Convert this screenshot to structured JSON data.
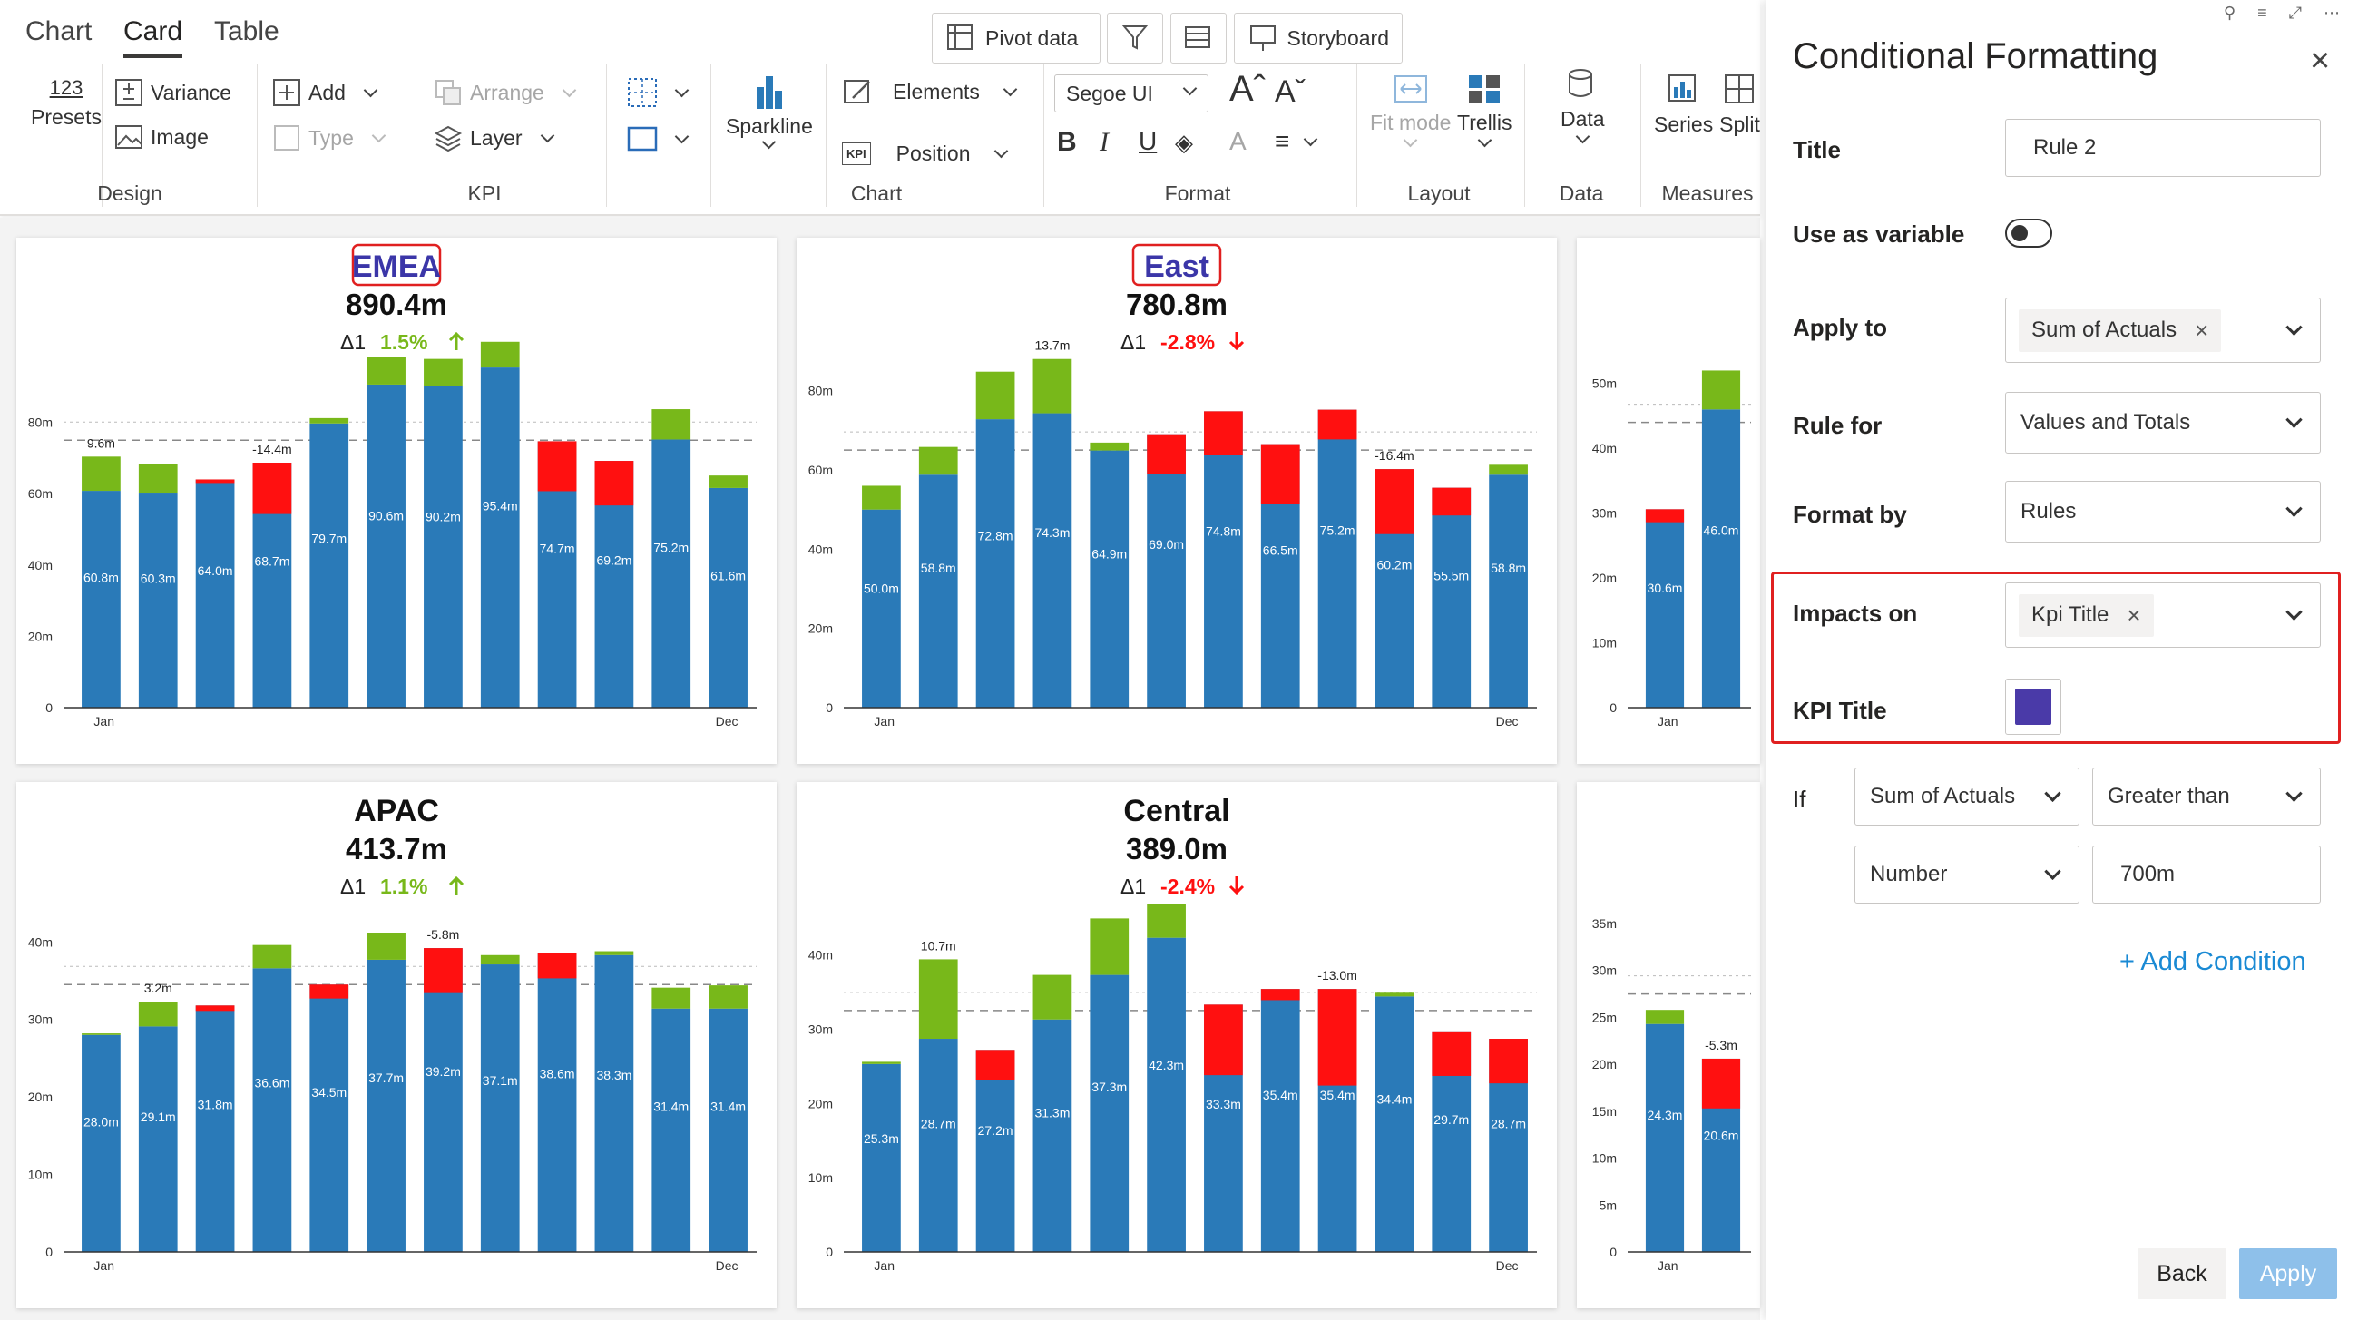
{
  "tabs": [
    "Chart",
    "Card",
    "Table"
  ],
  "toolbar": {
    "pivot_data": "Pivot data",
    "storyboard": "Storyboard",
    "presets_icon_text": "123",
    "presets": "Presets",
    "variance": "Variance",
    "image": "Image",
    "add": "Add",
    "type": "Type",
    "arrange": "Arrange",
    "layer": "Layer",
    "sparkline": "Sparkline",
    "elements": "Elements",
    "position": "Position",
    "kpi_icon_text": "KPI",
    "font": "Segoe UI",
    "fit_mode": "Fit mode",
    "trellis": "Trellis",
    "data": "Data",
    "series": "Series",
    "split": "Split",
    "groups": [
      "Design",
      "KPI",
      "Chart",
      "Format",
      "Layout",
      "Data",
      "Measures"
    ]
  },
  "cards": [
    {
      "title": "EMEA",
      "highlighted": true,
      "value": "890.4m",
      "delta_label": "Δ1",
      "delta": "1.5%",
      "delta_dir": "up",
      "chart_data": {
        "type": "bar",
        "x_start": "Jan",
        "x_end": "Dec",
        "yticks": [
          "0",
          "20m",
          "40m",
          "60m",
          "80m"
        ],
        "ymax": 100,
        "ref": 75,
        "values": [
          60.8,
          60.3,
          64.0,
          68.7,
          79.7,
          90.6,
          90.2,
          95.4,
          74.7,
          69.2,
          75.2,
          61.6
        ],
        "labels": [
          "60.8m",
          "60.3m",
          "64.0m",
          "68.7m",
          "79.7m",
          "90.6m",
          "90.2m",
          "95.4m",
          "74.7m",
          "69.2m",
          "75.2m",
          "61.6m"
        ],
        "delta": [
          9.6,
          8.0,
          -1.0,
          -14.4,
          1.5,
          7.8,
          7.6,
          7.2,
          -14.0,
          -12.5,
          8.5,
          3.5
        ],
        "annotations": [
          {
            "i": 0,
            "text": "9.6m"
          },
          {
            "i": 3,
            "text": "-14.4m"
          }
        ]
      }
    },
    {
      "title": "East",
      "highlighted": true,
      "value": "780.8m",
      "delta_label": "Δ1",
      "delta": "-2.8%",
      "delta_dir": "down",
      "chart_data": {
        "type": "bar",
        "x_start": "Jan",
        "x_end": "Dec",
        "yticks": [
          "0",
          "20m",
          "40m",
          "60m",
          "80m"
        ],
        "ymax": 90,
        "ref": 65,
        "values": [
          50.0,
          58.8,
          72.8,
          74.3,
          64.9,
          69.0,
          74.8,
          66.5,
          75.2,
          60.2,
          55.5,
          58.8
        ],
        "labels": [
          "50.0m",
          "58.8m",
          "72.8m",
          "74.3m",
          "64.9m",
          "69.0m",
          "74.8m",
          "66.5m",
          "75.2m",
          "60.2m",
          "55.5m",
          "58.8m"
        ],
        "delta": [
          6.0,
          7.0,
          12.0,
          13.7,
          2.0,
          -10.0,
          -11.0,
          -15.0,
          -7.5,
          -16.4,
          -7.0,
          2.5
        ],
        "annotations": [
          {
            "i": 3,
            "text": "13.7m"
          },
          {
            "i": 9,
            "text": "-16.4m"
          }
        ]
      }
    },
    {
      "title": "",
      "highlighted": false,
      "value": "",
      "delta_label": "",
      "delta": "",
      "delta_dir": "",
      "chart_data": {
        "type": "bar",
        "x_start": "Jan",
        "x_end": "",
        "yticks": [
          "0",
          "10m",
          "20m",
          "30m",
          "40m",
          "50m"
        ],
        "ymax": 55,
        "ref": 44,
        "values": [
          30.6,
          46.0
        ],
        "labels": [
          "30.6m",
          "46.0m"
        ],
        "delta": [
          -2.0,
          6.0
        ],
        "annotations": []
      }
    },
    {
      "title": "APAC",
      "highlighted": false,
      "value": "413.7m",
      "delta_label": "Δ1",
      "delta": "1.1%",
      "delta_dir": "up",
      "chart_data": {
        "type": "bar",
        "x_start": "Jan",
        "x_end": "Dec",
        "yticks": [
          "0",
          "10m",
          "20m",
          "30m",
          "40m"
        ],
        "ymax": 46,
        "ref": 34.5,
        "values": [
          28.0,
          29.1,
          31.8,
          36.6,
          34.5,
          37.7,
          39.2,
          37.1,
          38.6,
          38.3,
          31.4,
          31.4
        ],
        "labels": [
          "28.0m",
          "29.1m",
          "31.8m",
          "36.6m",
          "34.5m",
          "37.7m",
          "39.2m",
          "37.1m",
          "38.6m",
          "38.3m",
          "31.4m",
          "31.4m"
        ],
        "delta": [
          0.2,
          3.2,
          -0.7,
          3.0,
          -1.8,
          3.5,
          -5.8,
          1.2,
          -3.3,
          0.5,
          2.7,
          3.0
        ],
        "annotations": [
          {
            "i": 1,
            "text": "3.2m"
          },
          {
            "i": 6,
            "text": "-5.8m"
          }
        ]
      }
    },
    {
      "title": "Central",
      "highlighted": false,
      "value": "389.0m",
      "delta_label": "Δ1",
      "delta": "-2.4%",
      "delta_dir": "down",
      "chart_data": {
        "type": "bar",
        "x_start": "Jan",
        "x_end": "Dec",
        "yticks": [
          "0",
          "10m",
          "20m",
          "30m",
          "40m"
        ],
        "ymax": 48,
        "ref": 32.5,
        "values": [
          25.3,
          28.7,
          27.2,
          31.3,
          37.3,
          42.3,
          33.3,
          35.4,
          35.4,
          34.4,
          29.7,
          28.7
        ],
        "labels": [
          "25.3m",
          "28.7m",
          "27.2m",
          "31.3m",
          "37.3m",
          "42.3m",
          "33.3m",
          "35.4m",
          "35.4m",
          "34.4m",
          "29.7m",
          "28.7m"
        ],
        "delta": [
          0.3,
          10.7,
          -4.0,
          6.0,
          7.6,
          4.5,
          -9.5,
          -1.5,
          -13.0,
          0.5,
          -6.0,
          -6.0
        ],
        "annotations": [
          {
            "i": 1,
            "text": "10.7m"
          },
          {
            "i": 8,
            "text": "-13.0m"
          }
        ]
      }
    },
    {
      "title": "",
      "highlighted": false,
      "value": "",
      "delta_label": "",
      "delta": "",
      "delta_dir": "",
      "chart_data": {
        "type": "bar",
        "x_start": "Jan",
        "x_end": "",
        "yticks": [
          "0",
          "5m",
          "10m",
          "15m",
          "20m",
          "25m",
          "30m",
          "35m"
        ],
        "ymax": 38,
        "ref": 27.5,
        "values": [
          24.3,
          20.6
        ],
        "labels": [
          "24.3m",
          "20.6m"
        ],
        "delta": [
          1.5,
          -5.3
        ],
        "annotations": [
          {
            "i": 1,
            "text": "-5.3m"
          }
        ]
      }
    }
  ],
  "panel": {
    "title": "Conditional Formatting",
    "title_label": "Title",
    "title_value": "Rule 2",
    "variable_label": "Use as variable",
    "variable_on": false,
    "apply_label": "Apply to",
    "apply_tag": "Sum of Actuals",
    "rule_label": "Rule for",
    "rule_value": "Values and Totals",
    "format_label": "Format by",
    "format_value": "Rules",
    "impacts_label": "Impacts on",
    "impacts_tag": "Kpi Title",
    "kpi_title_label": "KPI Title",
    "kpi_color": "#4a3aa8",
    "if_label": "If",
    "if_measure": "Sum of Actuals",
    "if_operator": "Greater than",
    "if_type": "Number",
    "if_value": "700m",
    "add_condition": "+ Add Condition",
    "back": "Back",
    "apply": "Apply"
  },
  "colors": {
    "bar": "#2a7ab8",
    "positive": "#78b81a",
    "negative": "#ff1010",
    "accent": "#1a8ad4",
    "highlight": "#e02020",
    "title_hl": "#3b36a8"
  }
}
